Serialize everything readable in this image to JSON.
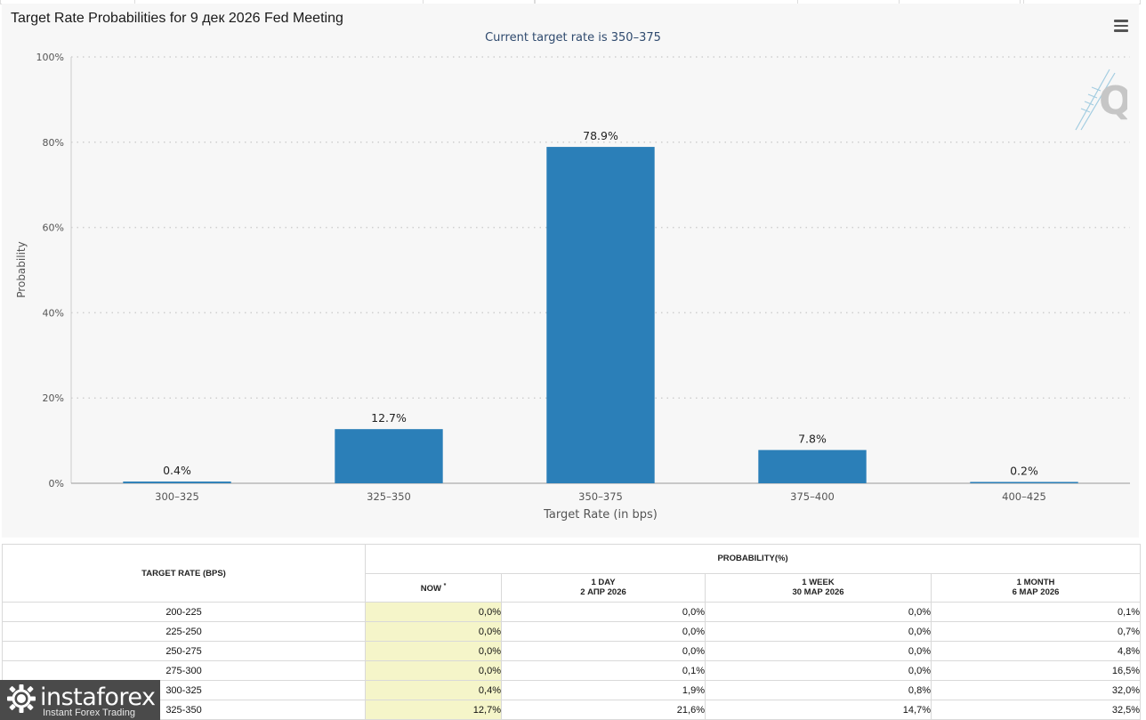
{
  "chart_panel": {
    "title": "Target Rate Probabilities for 9 дек 2026 Fed Meeting",
    "subtitle": "Current target rate is 350–375",
    "menu_icon": "hamburger-menu-icon",
    "watermark": "Q"
  },
  "chart_data": {
    "type": "bar",
    "categories": [
      "300–325",
      "325–350",
      "350–375",
      "375–400",
      "400–425"
    ],
    "values": [
      0.4,
      12.7,
      78.9,
      7.8,
      0.2
    ],
    "data_labels": [
      "0.4%",
      "12.7%",
      "78.9%",
      "7.8%",
      "0.2%"
    ],
    "title": "Target Rate Probabilities for 9 дек 2026 Fed Meeting",
    "subtitle": "Current target rate is 350–375",
    "xlabel": "Target Rate (in bps)",
    "ylabel": "Probability",
    "ylim": [
      0,
      100
    ],
    "yticks": [
      "0%",
      "20%",
      "40%",
      "60%",
      "80%",
      "100%"
    ],
    "ytick_values": [
      0,
      20,
      40,
      60,
      80,
      100
    ],
    "grid": true,
    "bar_color": "#2b7fb8"
  },
  "table": {
    "target_rate_header": "TARGET RATE (BPS)",
    "probability_header": "PROBABILITY(%)",
    "columns": [
      {
        "line1": "NOW",
        "line2": "",
        "sup": "*"
      },
      {
        "line1": "1 DAY",
        "line2": "2 АПР 2026",
        "sup": ""
      },
      {
        "line1": "1 WEEK",
        "line2": "30 МАР 2026",
        "sup": ""
      },
      {
        "line1": "1 MONTH",
        "line2": "6 МАР 2026",
        "sup": ""
      }
    ],
    "rows": [
      {
        "rate": "200-225",
        "now": "0,0%",
        "day": "0,0%",
        "week": "0,0%",
        "month": "0,1%"
      },
      {
        "rate": "225-250",
        "now": "0,0%",
        "day": "0,0%",
        "week": "0,0%",
        "month": "0,7%"
      },
      {
        "rate": "250-275",
        "now": "0,0%",
        "day": "0,0%",
        "week": "0,0%",
        "month": "4,8%"
      },
      {
        "rate": "275-300",
        "now": "0,0%",
        "day": "0,1%",
        "week": "0,0%",
        "month": "16,5%"
      },
      {
        "rate": "300-325",
        "now": "0,4%",
        "day": "1,9%",
        "week": "0,8%",
        "month": "32,0%"
      },
      {
        "rate": "325-350",
        "now": "12,7%",
        "day": "21,6%",
        "week": "14,7%",
        "month": "32,5%"
      }
    ],
    "now_highlight_color": "#f5f5c9"
  },
  "logo": {
    "brand": "instaforex",
    "tagline": "Instant Forex Trading",
    "icon": "gear-logo-icon"
  }
}
